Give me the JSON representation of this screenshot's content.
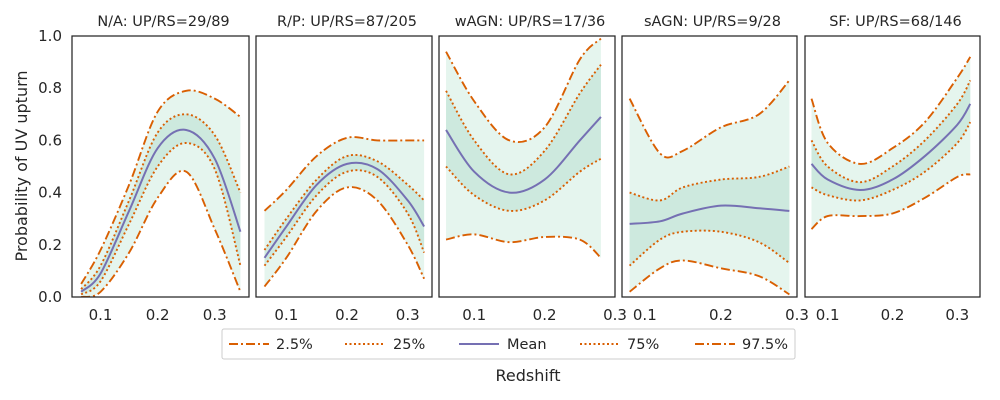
{
  "colors": {
    "quantile": "#d95f02",
    "mean": "#7570b3",
    "band_outer": "#e5f5ee",
    "band_inner": "#cde9de",
    "frame": "#262626"
  },
  "chart_data": {
    "type": "line",
    "xlabel": "Redshift",
    "ylabel": "Probability of UV upturn",
    "ylim": [
      0.0,
      1.0
    ],
    "yticks": [
      "0.0",
      "0.2",
      "0.4",
      "0.6",
      "0.8",
      "1.0"
    ],
    "legend": {
      "position": "bottom-center",
      "entries": [
        {
          "key": "p025",
          "label": "2.5%",
          "style": "dashdot"
        },
        {
          "key": "p25",
          "label": "25%",
          "style": "dotted"
        },
        {
          "key": "mean",
          "label": "Mean",
          "style": "solid"
        },
        {
          "key": "p75",
          "label": "75%",
          "style": "dotted"
        },
        {
          "key": "p975",
          "label": "97.5%",
          "style": "dashdot"
        }
      ]
    },
    "panels": [
      {
        "title": "N/A:  UP/RS=29/89",
        "xlim": [
          0.05,
          0.36
        ],
        "xticks": [
          "0.1",
          "0.2",
          "0.3"
        ],
        "x": [
          0.066,
          0.1,
          0.15,
          0.2,
          0.25,
          0.3,
          0.345
        ],
        "p025": [
          0.0,
          0.02,
          0.17,
          0.38,
          0.48,
          0.26,
          0.02
        ],
        "p25": [
          0.01,
          0.06,
          0.28,
          0.5,
          0.59,
          0.49,
          0.12
        ],
        "mean": [
          0.02,
          0.09,
          0.33,
          0.57,
          0.64,
          0.53,
          0.25
        ],
        "p75": [
          0.03,
          0.12,
          0.37,
          0.63,
          0.7,
          0.62,
          0.4
        ],
        "p975": [
          0.05,
          0.18,
          0.43,
          0.71,
          0.79,
          0.76,
          0.69
        ]
      },
      {
        "title": "R/P:  UP/RS=87/205",
        "xlim": [
          0.05,
          0.34
        ],
        "xticks": [
          "0.1",
          "0.2",
          "0.3"
        ],
        "x": [
          0.064,
          0.1,
          0.15,
          0.2,
          0.25,
          0.3,
          0.327
        ],
        "p025": [
          0.04,
          0.15,
          0.33,
          0.42,
          0.37,
          0.2,
          0.07
        ],
        "p25": [
          0.12,
          0.23,
          0.39,
          0.48,
          0.46,
          0.32,
          0.17
        ],
        "mean": [
          0.15,
          0.27,
          0.43,
          0.51,
          0.49,
          0.37,
          0.27
        ],
        "p75": [
          0.18,
          0.3,
          0.45,
          0.54,
          0.52,
          0.43,
          0.37
        ],
        "p975": [
          0.33,
          0.41,
          0.54,
          0.61,
          0.6,
          0.6,
          0.6
        ]
      },
      {
        "title": "wAGN:  UP/RS=17/36",
        "xlim": [
          0.05,
          0.3
        ],
        "xticks": [
          "0.1",
          "0.2",
          "0.3"
        ],
        "x": [
          0.06,
          0.1,
          0.15,
          0.2,
          0.25,
          0.28
        ],
        "p025": [
          0.22,
          0.24,
          0.21,
          0.23,
          0.22,
          0.15
        ],
        "p25": [
          0.5,
          0.39,
          0.33,
          0.37,
          0.48,
          0.53
        ],
        "mean": [
          0.64,
          0.48,
          0.4,
          0.45,
          0.6,
          0.69
        ],
        "p75": [
          0.79,
          0.6,
          0.47,
          0.56,
          0.78,
          0.89
        ],
        "p975": [
          0.94,
          0.75,
          0.6,
          0.65,
          0.91,
          0.99
        ]
      },
      {
        "title": "sAGN:  UP/RS=9/28",
        "xlim": [
          0.07,
          0.3
        ],
        "xticks": [
          "0.1",
          "0.2",
          "0.3"
        ],
        "x": [
          0.08,
          0.12,
          0.15,
          0.2,
          0.25,
          0.29
        ],
        "p025": [
          0.02,
          0.11,
          0.14,
          0.11,
          0.08,
          0.01
        ],
        "p25": [
          0.12,
          0.22,
          0.25,
          0.25,
          0.21,
          0.13
        ],
        "mean": [
          0.28,
          0.29,
          0.32,
          0.35,
          0.34,
          0.33
        ],
        "p75": [
          0.4,
          0.37,
          0.42,
          0.45,
          0.46,
          0.5
        ],
        "p975": [
          0.76,
          0.55,
          0.56,
          0.65,
          0.7,
          0.83
        ]
      },
      {
        "title": "SF:  UP/RS=68/146",
        "xlim": [
          0.065,
          0.335
        ],
        "xticks": [
          "0.1",
          "0.2",
          "0.3"
        ],
        "x": [
          0.075,
          0.1,
          0.15,
          0.2,
          0.25,
          0.3,
          0.32
        ],
        "p025": [
          0.26,
          0.31,
          0.31,
          0.32,
          0.38,
          0.46,
          0.47
        ],
        "p25": [
          0.42,
          0.39,
          0.37,
          0.41,
          0.48,
          0.59,
          0.67
        ],
        "mean": [
          0.51,
          0.45,
          0.41,
          0.45,
          0.54,
          0.66,
          0.74
        ],
        "p75": [
          0.6,
          0.5,
          0.44,
          0.5,
          0.6,
          0.74,
          0.83
        ],
        "p975": [
          0.76,
          0.59,
          0.51,
          0.57,
          0.67,
          0.84,
          0.92
        ]
      }
    ]
  }
}
